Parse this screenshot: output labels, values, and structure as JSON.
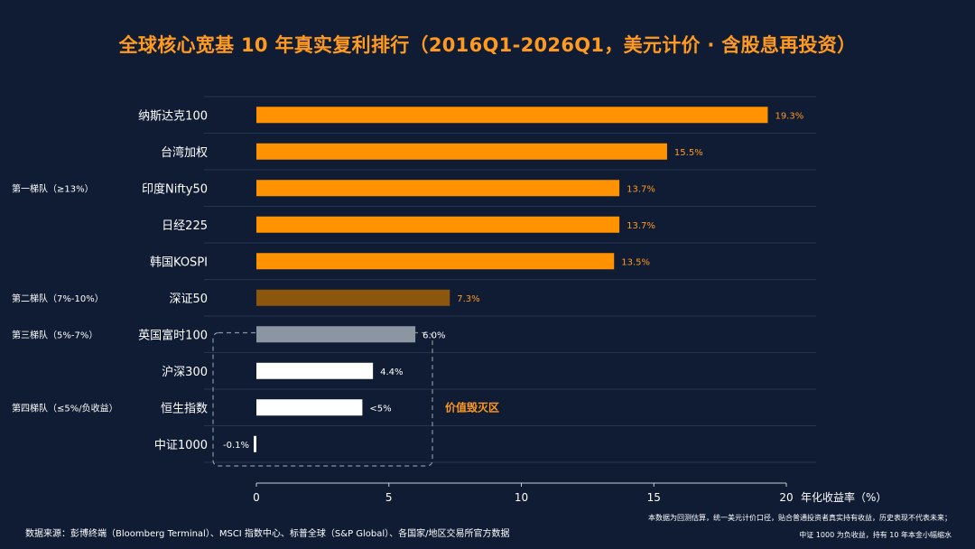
{
  "title": "全球核心宽基 10 年真实复利排行（2016Q1-2026Q1，美元计价 · 含股息再投资）",
  "chart_data": {
    "type": "bar",
    "orientation": "horizontal",
    "categories": [
      "纳斯达克100",
      "台湾加权",
      "印度Nifty50",
      "日经225",
      "韩国KOSPI",
      "深证50",
      "英国富时100",
      "沪深300",
      "恒生指数",
      "中证1000"
    ],
    "values": [
      19.3,
      15.5,
      13.7,
      13.7,
      13.5,
      7.3,
      6.0,
      4.4,
      4.0,
      -0.1
    ],
    "value_labels": [
      "19.3%",
      "15.5%",
      "13.7%",
      "13.7%",
      "13.5%",
      "7.3%",
      "6.0%",
      "4.4%",
      "<5%",
      "-0.1%"
    ],
    "bar_colors": [
      "#ff9200",
      "#ff9200",
      "#ff9200",
      "#ff9200",
      "#ff9200",
      "#8c560f",
      "#8c96a3",
      "#ffffff",
      "#ffffff",
      "#ffffff"
    ],
    "label_colors": [
      "#ff9a1f",
      "#ff9a1f",
      "#ff9a1f",
      "#ff9a1f",
      "#ff9a1f",
      "#ff9a1f",
      "#ffffff",
      "#ffffff",
      "#ffffff",
      "#ffffff"
    ],
    "xlabel": "年化收益率（%）",
    "xlim": [
      0,
      20
    ],
    "xticks": [
      0,
      5,
      10,
      15,
      20
    ],
    "grid": "horizontal row separators",
    "tiers": [
      {
        "label": "第一梯队（≥13%）",
        "rows": [
          0,
          4
        ]
      },
      {
        "label": "第二梯队（7%-10%）",
        "rows": [
          5,
          5
        ]
      },
      {
        "label": "第三梯队（5%-7%）",
        "rows": [
          6,
          6
        ]
      },
      {
        "label": "第四梯队（≤5%/负收益）",
        "rows": [
          7,
          9
        ]
      }
    ],
    "annotation": {
      "text": "价值毁灭区",
      "color": "#ff9a1f"
    }
  },
  "footer": {
    "source": "数据来源：彭博终端（Bloomberg Terminal）、MSCI 指数中心、标普全球（S&P Global）、各国家/地区交易所官方数据",
    "note_line1": "本数据为回测估算，统一美元计价口径，贴合普通投资者真实持有收益，历史表现不代表未来；",
    "note_line2": "中证 1000 为负收益，持有 10 年本金小幅缩水"
  }
}
